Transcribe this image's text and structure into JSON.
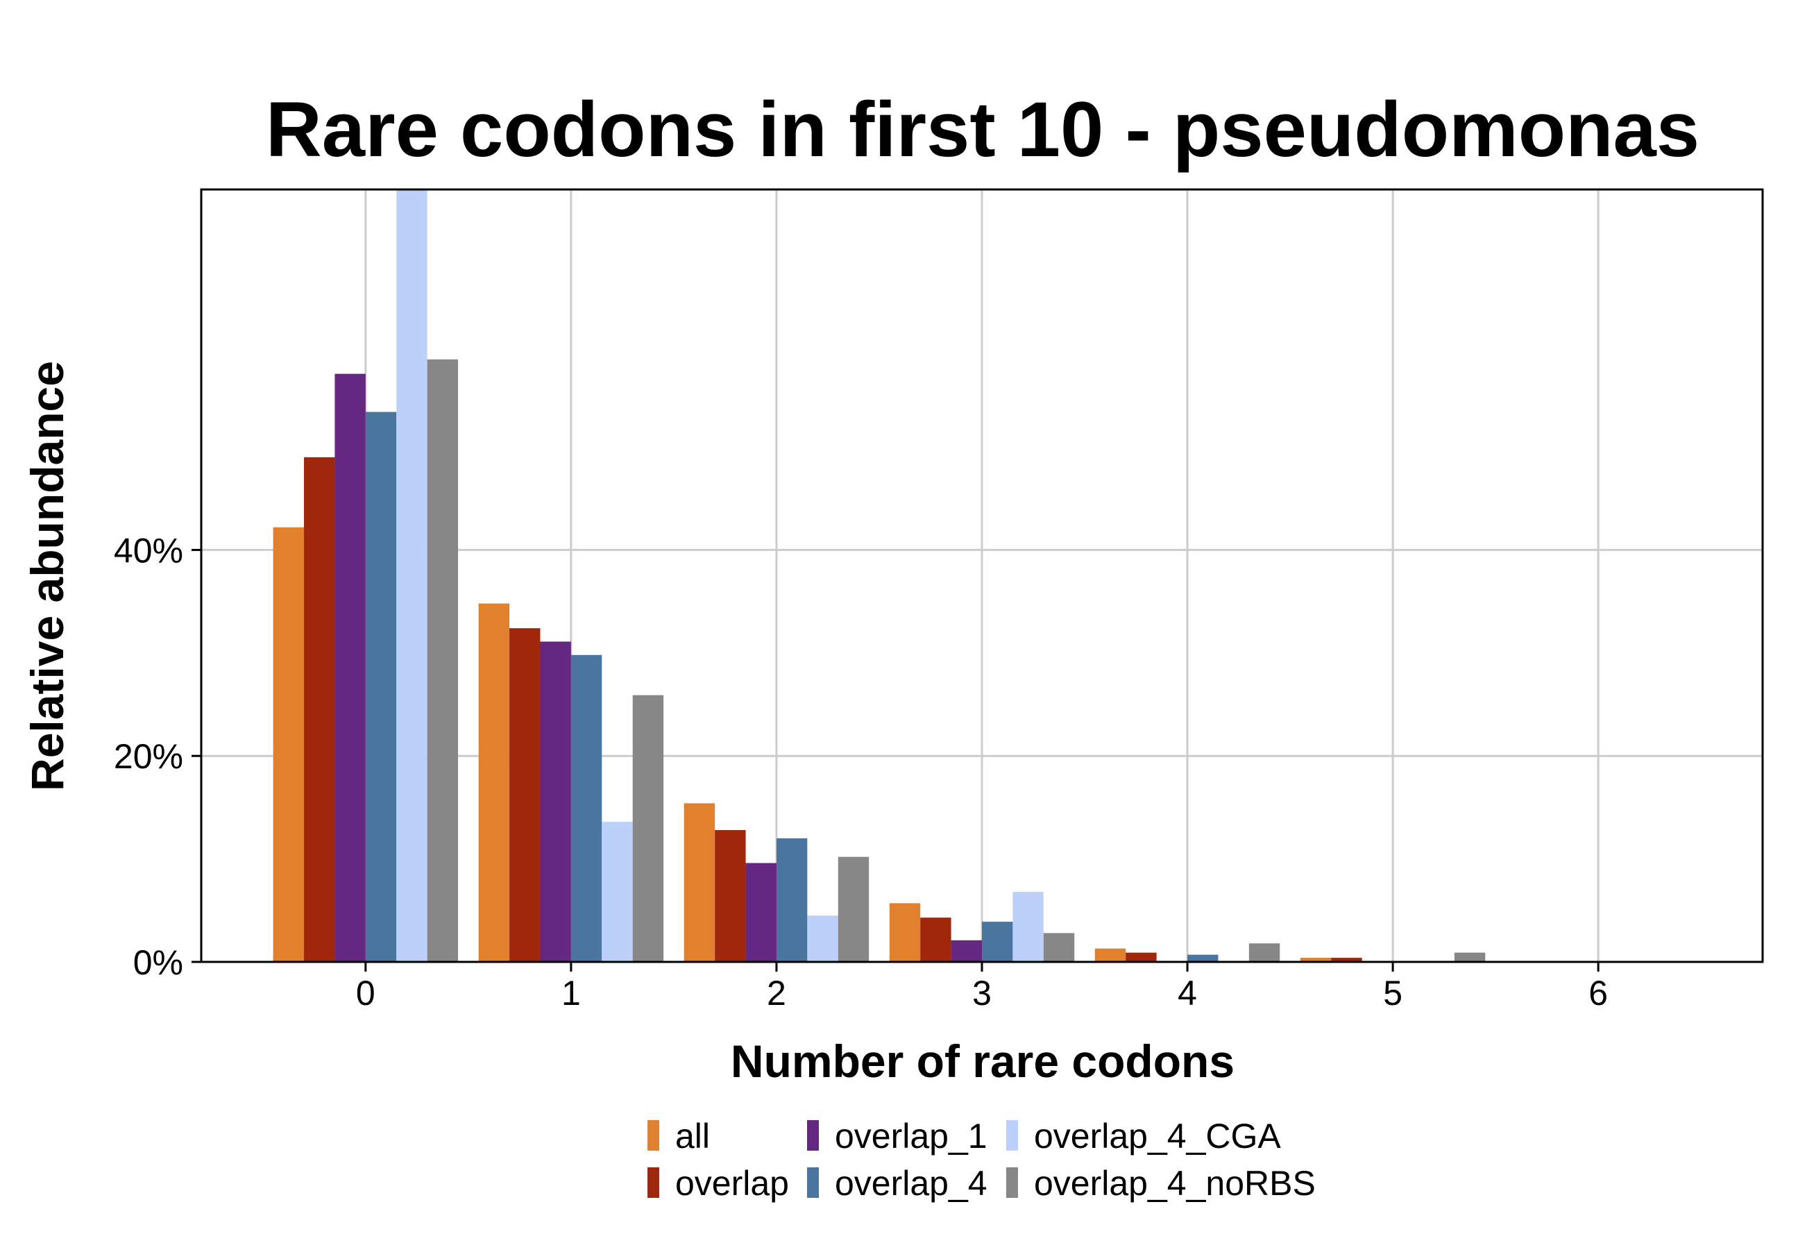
{
  "chart_data": {
    "type": "bar",
    "title": "Rare codons in first 10 - pseudomonas",
    "xlabel": "Number of rare codons",
    "ylabel": "Relative abundance",
    "categories": [
      "0",
      "1",
      "2",
      "3",
      "4",
      "5",
      "6"
    ],
    "x_tick_labels": [
      "0",
      "1",
      "2",
      "3",
      "4",
      "5",
      "6"
    ],
    "y_ticks": [
      0,
      20,
      40
    ],
    "y_tick_labels": [
      "0%",
      "20%",
      "40%"
    ],
    "ylim": [
      0,
      75
    ],
    "xlim": [
      -0.8,
      6.8
    ],
    "grid": true,
    "legend_position": "bottom",
    "series": [
      {
        "name": "all",
        "color": "#E2812D",
        "values": [
          42.2,
          34.8,
          15.4,
          5.7,
          1.3,
          0.4,
          0
        ]
      },
      {
        "name": "overlap",
        "color": "#A0270C",
        "values": [
          49.0,
          32.4,
          12.8,
          4.3,
          0.9,
          0.4,
          0
        ]
      },
      {
        "name": "overlap_1",
        "color": "#642882",
        "values": [
          57.1,
          31.1,
          9.6,
          2.1,
          0,
          0,
          0
        ]
      },
      {
        "name": "overlap_4",
        "color": "#4A759F",
        "values": [
          53.4,
          29.8,
          12.0,
          3.9,
          0.7,
          0,
          0
        ]
      },
      {
        "name": "overlap_4_CGA",
        "color": "#BDD0FA",
        "values": [
          75.0,
          13.6,
          4.5,
          6.8,
          0,
          0,
          0
        ]
      },
      {
        "name": "overlap_4_noRBS",
        "color": "#878787",
        "values": [
          58.5,
          25.9,
          10.2,
          2.8,
          1.8,
          0.9,
          0
        ]
      }
    ]
  }
}
